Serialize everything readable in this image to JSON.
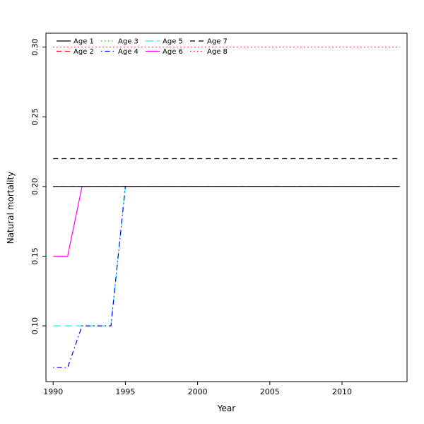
{
  "chart_data": {
    "type": "line",
    "title": "",
    "xlabel": "Year",
    "ylabel": "Natural mortality",
    "grid": false,
    "legend_position": "top-left",
    "xlim": [
      1989.5,
      2014.5
    ],
    "ylim": [
      0.06,
      0.31
    ],
    "xticks": [
      1990,
      1995,
      2000,
      2005,
      2010
    ],
    "xtick_labels": [
      "1990",
      "1995",
      "2000",
      "2005",
      "2010"
    ],
    "yticks": [
      0.1,
      0.15,
      0.2,
      0.25,
      0.3
    ],
    "ytick_labels": [
      "0.10",
      "0.15",
      "0.20",
      "0.25",
      "0.30"
    ],
    "x": [
      1990,
      1991,
      1992,
      1993,
      1994,
      1995,
      1996,
      1997,
      1998,
      1999,
      2000,
      2001,
      2002,
      2003,
      2004,
      2005,
      2006,
      2007,
      2008,
      2009,
      2010,
      2011,
      2012,
      2013,
      2014
    ],
    "series": [
      {
        "name": "Age 1",
        "color": "#000000",
        "linetype": "solid",
        "values": [
          0.2,
          0.2,
          0.2,
          0.2,
          0.2,
          0.2,
          0.2,
          0.2,
          0.2,
          0.2,
          0.2,
          0.2,
          0.2,
          0.2,
          0.2,
          0.2,
          0.2,
          0.2,
          0.2,
          0.2,
          0.2,
          0.2,
          0.2,
          0.2,
          0.2
        ]
      },
      {
        "name": "Age 2",
        "color": "#FF0000",
        "linetype": "dashed",
        "values": [
          0.2,
          0.2,
          0.2,
          0.2,
          0.2,
          0.2,
          0.2,
          0.2,
          0.2,
          0.2,
          0.2,
          0.2,
          0.2,
          0.2,
          0.2,
          0.2,
          0.2,
          0.2,
          0.2,
          0.2,
          0.2,
          0.2,
          0.2,
          0.2,
          0.2
        ]
      },
      {
        "name": "Age 3",
        "color": "#00CD00",
        "linetype": "dotted",
        "values": [
          0.2,
          0.2,
          0.2,
          0.2,
          0.2,
          0.2,
          0.2,
          0.2,
          0.2,
          0.2,
          0.2,
          0.2,
          0.2,
          0.2,
          0.2,
          0.2,
          0.2,
          0.2,
          0.2,
          0.2,
          0.2,
          0.2,
          0.2,
          0.2,
          0.2
        ]
      },
      {
        "name": "Age 4",
        "color": "#0000FF",
        "linetype": "dotdash",
        "values": [
          0.07,
          0.07,
          0.1,
          0.1,
          0.1,
          0.2,
          0.2,
          0.2,
          0.2,
          0.2,
          0.2,
          0.2,
          0.2,
          0.2,
          0.2,
          0.2,
          0.2,
          0.2,
          0.2,
          0.2,
          0.2,
          0.2,
          0.2,
          0.2,
          0.2
        ]
      },
      {
        "name": "Age 5",
        "color": "#00FFFF",
        "linetype": "longdash",
        "values": [
          0.1,
          0.1,
          0.1,
          0.1,
          0.1,
          0.2,
          0.2,
          0.2,
          0.2,
          0.2,
          0.2,
          0.2,
          0.2,
          0.2,
          0.2,
          0.2,
          0.2,
          0.2,
          0.2,
          0.2,
          0.2,
          0.2,
          0.2,
          0.2,
          0.2
        ]
      },
      {
        "name": "Age 6",
        "color": "#FF00FF",
        "linetype": "solid",
        "values": [
          0.15,
          0.15,
          0.2,
          0.2,
          0.2,
          0.2,
          0.2,
          0.2,
          0.2,
          0.2,
          0.2,
          0.2,
          0.2,
          0.2,
          0.2,
          0.2,
          0.2,
          0.2,
          0.2,
          0.2,
          0.2,
          0.2,
          0.2,
          0.2,
          0.2
        ]
      },
      {
        "name": "Age 7",
        "color": "#000000",
        "linetype": "dashed",
        "values": [
          0.22,
          0.22,
          0.22,
          0.22,
          0.22,
          0.22,
          0.22,
          0.22,
          0.22,
          0.22,
          0.22,
          0.22,
          0.22,
          0.22,
          0.22,
          0.22,
          0.22,
          0.22,
          0.22,
          0.22,
          0.22,
          0.22,
          0.22,
          0.22,
          0.22
        ]
      },
      {
        "name": "Age 8",
        "color": "#FF0000",
        "linetype": "dotted",
        "values": [
          0.3,
          0.3,
          0.3,
          0.3,
          0.3,
          0.3,
          0.3,
          0.3,
          0.3,
          0.3,
          0.3,
          0.3,
          0.3,
          0.3,
          0.3,
          0.3,
          0.3,
          0.3,
          0.3,
          0.3,
          0.3,
          0.3,
          0.3,
          0.3,
          0.3
        ]
      }
    ],
    "colors": {
      "axis": "#000000",
      "background": "#FFFFFF"
    }
  }
}
